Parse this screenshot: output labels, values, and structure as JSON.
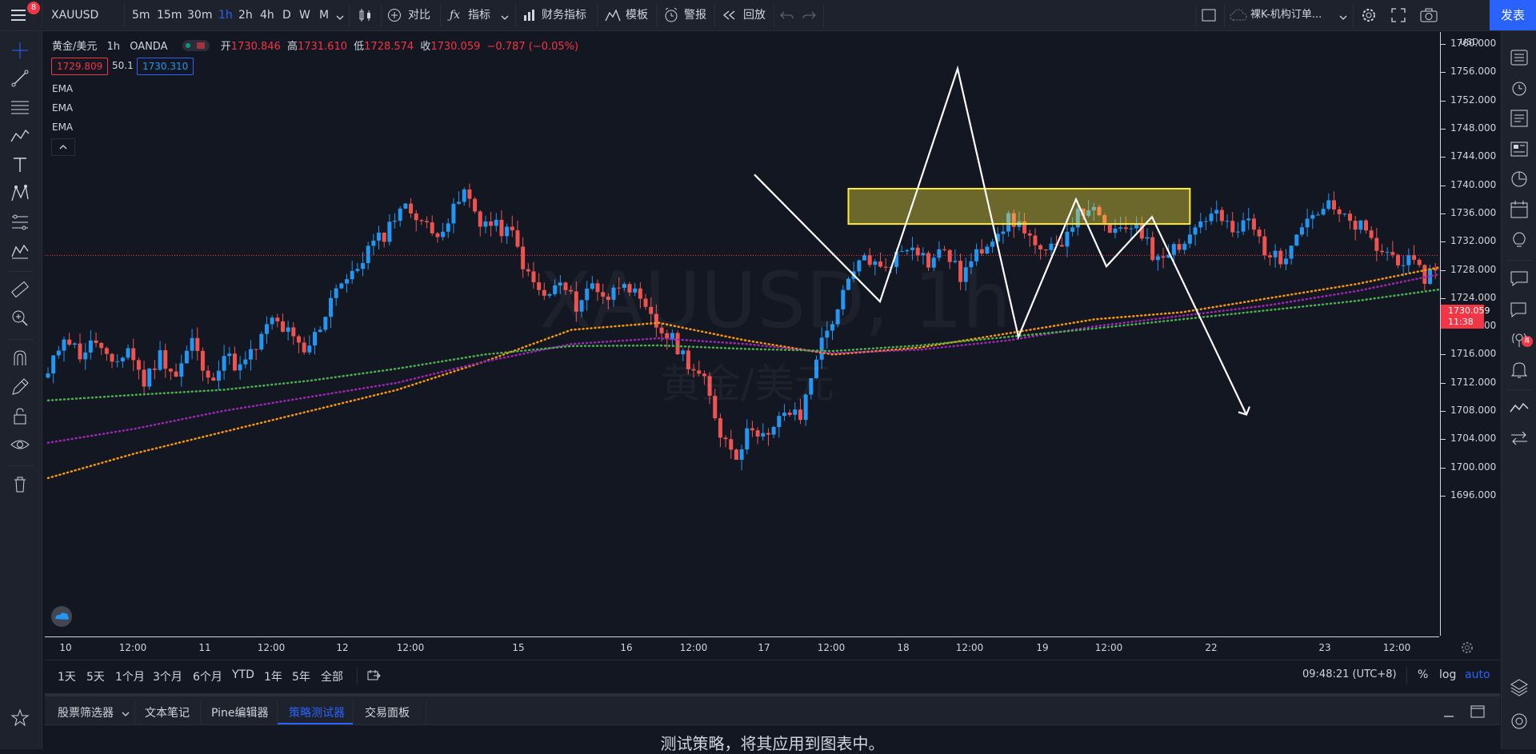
{
  "toolbar": {
    "menu_badge": "8",
    "symbol": "XAUUSD",
    "intervals": [
      "5m",
      "15m",
      "30m",
      "1h",
      "2h",
      "4h",
      "D",
      "W",
      "M"
    ],
    "active_interval": "1h",
    "compare_label": "对比",
    "indicators_label": "指标",
    "financials_label": "财务指标",
    "templates_label": "模板",
    "alerts_label": "警报",
    "replay_label": "回放",
    "layout_name": "裸K-机构订单...",
    "publish_label": "发表"
  },
  "legend": {
    "title": "黄金/美元",
    "interval": "1h",
    "source": "OANDA",
    "open_label": "开",
    "open": "1730.846",
    "high_label": "高",
    "high": "1731.610",
    "low_label": "低",
    "low": "1728.574",
    "close_label": "收",
    "close": "1730.059",
    "change": "−0.787 (−0.05%)",
    "bid": "1729.809",
    "spread": "50.1",
    "ask": "1730.310",
    "indicators": [
      "EMA",
      "EMA",
      "EMA"
    ]
  },
  "watermark": {
    "symbol": "XAUUSD, 1h",
    "name": "黄金/美元"
  },
  "price_axis": {
    "currency": "USD",
    "current_price": "1730.059",
    "countdown": "11:38"
  },
  "time_axis": {
    "labels": [
      "10",
      "12:00",
      "11",
      "12:00",
      "12",
      "12:00",
      "15",
      "16",
      "12:00",
      "17",
      "12:00",
      "18",
      "12:00",
      "19",
      "12:00",
      "22",
      "23",
      "12:00"
    ]
  },
  "rangebar": {
    "ranges": [
      "1天",
      "5天",
      "1个月",
      "3个月",
      "6个月",
      "YTD",
      "1年",
      "5年",
      "全部"
    ],
    "clock": "09:48:21 (UTC+8)",
    "percent": "%",
    "log": "log",
    "auto": "auto"
  },
  "panel": {
    "tabs": [
      "股票筛选器",
      "文本笔记",
      "Pine编辑器",
      "策略测试器",
      "交易面板"
    ],
    "active_tab": "策略测试器",
    "message": "测试策略，将其应用到图表中。"
  },
  "right_badge": "4",
  "chart_data": {
    "type": "candlestick",
    "symbol": "XAUUSD",
    "interval": "1h",
    "ylim": [
      1693,
      1762
    ],
    "y_ticks": [
      1696,
      1700,
      1704,
      1708,
      1712,
      1716,
      1720,
      1724,
      1728,
      1732,
      1736,
      1740,
      1744,
      1748,
      1752,
      1756,
      1760
    ],
    "last_price": 1730.059,
    "series": [
      {
        "kind": "close_path",
        "values": [
          1713,
          1719,
          1716,
          1718,
          1714,
          1717,
          1712,
          1716,
          1713,
          1718,
          1712,
          1716,
          1714,
          1717,
          1721,
          1719,
          1716,
          1720,
          1726,
          1727,
          1731,
          1733,
          1737,
          1736,
          1733,
          1735,
          1739,
          1735,
          1734,
          1733,
          1727,
          1724,
          1726,
          1723,
          1726,
          1724,
          1727,
          1723,
          1720,
          1718,
          1715,
          1712,
          1705,
          1702,
          1706,
          1704,
          1708,
          1707,
          1716,
          1721,
          1726,
          1730,
          1728,
          1730,
          1732,
          1729,
          1731,
          1727,
          1730,
          1733,
          1735,
          1734,
          1730,
          1731,
          1735,
          1737,
          1734,
          1733,
          1735,
          1730,
          1731,
          1732,
          1735,
          1736,
          1733,
          1735,
          1731,
          1729,
          1734,
          1736,
          1737,
          1735,
          1734,
          1731,
          1730,
          1729,
          1727,
          1729,
          1740,
          1749,
          1746,
          1750,
          1752,
          1754,
          1751,
          1749,
          1750,
          1743,
          1736,
          1730,
          1727,
          1723,
          1729,
          1731,
          1734,
          1735,
          1736,
          1734,
          1731,
          1730
        ]
      },
      {
        "kind": "ema",
        "color": "#ff9800",
        "values": [
          1698.5,
          1702,
          1705,
          1708,
          1711,
          1715,
          1719.5,
          1720.5,
          1718,
          1716,
          1717,
          1719,
          1721,
          1722,
          1724,
          1726,
          1728.5,
          1730.5,
          1735.5,
          1733,
          1731
        ]
      },
      {
        "kind": "ema",
        "color": "#9c27b0",
        "values": [
          1703.5,
          1705.5,
          1708,
          1710,
          1712,
          1715,
          1717.5,
          1718.3,
          1717.5,
          1716.2,
          1716.7,
          1718,
          1720,
          1721.5,
          1723,
          1725,
          1727.5,
          1729,
          1732.5,
          1733.5,
          1732
        ]
      },
      {
        "kind": "ema",
        "color": "#4caf50",
        "values": [
          1709.5,
          1710.3,
          1711,
          1712.3,
          1714,
          1716,
          1717.2,
          1717.3,
          1716.8,
          1716.5,
          1717.3,
          1718.5,
          1719.7,
          1721,
          1722.3,
          1723.6,
          1725.3,
          1727.5,
          1731,
          1732.3,
          1731.5
        ]
      }
    ],
    "annotations": {
      "rectangle": {
        "from_index": 150,
        "to_index": 214,
        "top": 1739.5,
        "bottom": 1734.5,
        "color": "#ffeb3b"
      },
      "zigzag_prices": [
        1741.5,
        1723.5,
        1756.5,
        1718.5,
        1738,
        1728.5,
        1735.5,
        1707.5
      ]
    }
  }
}
